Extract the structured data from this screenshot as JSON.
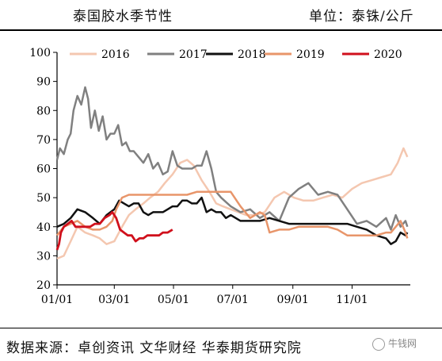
{
  "header": {
    "title": "泰国胶水季节性",
    "unit": "单位：泰铢/公斤"
  },
  "footer": {
    "source": "数据来源：卓创资讯  文华财经  华泰期货研究院",
    "watermark": "牛钱网"
  },
  "chart_data": {
    "type": "line",
    "ylim": [
      20,
      100
    ],
    "yticks": [
      20,
      30,
      40,
      50,
      60,
      70,
      80,
      90,
      100
    ],
    "xlim": [
      1,
      365
    ],
    "xticks": [
      {
        "label": "01/01",
        "day": 1
      },
      {
        "label": "03/01",
        "day": 60
      },
      {
        "label": "05/01",
        "day": 121
      },
      {
        "label": "07/01",
        "day": 182
      },
      {
        "label": "09/01",
        "day": 244
      },
      {
        "label": "11/01",
        "day": 305
      }
    ],
    "legend_position": "top",
    "series": [
      {
        "name": "2016",
        "color": "#f4c7b0",
        "width": 2.5,
        "x": [
          1,
          8,
          15,
          22,
          30,
          38,
          45,
          52,
          60,
          68,
          75,
          82,
          90,
          97,
          105,
          112,
          120,
          128,
          135,
          142,
          150,
          158,
          165,
          172,
          180,
          188,
          196,
          205,
          215,
          225,
          235,
          245,
          255,
          265,
          275,
          285,
          295,
          305,
          315,
          325,
          335,
          345,
          352,
          358,
          362
        ],
        "y": [
          29,
          30,
          35,
          40,
          38,
          37,
          36,
          34,
          35,
          40,
          44,
          46,
          48,
          50,
          52,
          55,
          58,
          62,
          63,
          61,
          56,
          52,
          48,
          47,
          46,
          45,
          44,
          44,
          45,
          50,
          52,
          50,
          49,
          49,
          50,
          51,
          50,
          53,
          55,
          56,
          57,
          58,
          62,
          67,
          64
        ]
      },
      {
        "name": "2017",
        "color": "#808080",
        "width": 2.5,
        "x": [
          1,
          4,
          8,
          12,
          15,
          18,
          22,
          26,
          30,
          33,
          36,
          40,
          44,
          48,
          52,
          56,
          60,
          64,
          68,
          72,
          76,
          80,
          85,
          90,
          95,
          100,
          105,
          110,
          115,
          120,
          125,
          130,
          135,
          140,
          145,
          150,
          155,
          160,
          165,
          170,
          180,
          190,
          200,
          210,
          220,
          230,
          240,
          250,
          260,
          270,
          280,
          290,
          300,
          310,
          320,
          330,
          340,
          345,
          350,
          355,
          360,
          362
        ],
        "y": [
          63,
          67,
          65,
          70,
          72,
          80,
          85,
          82,
          88,
          84,
          74,
          80,
          73,
          78,
          70,
          72,
          72,
          75,
          68,
          69,
          66,
          66,
          64,
          62,
          65,
          60,
          62,
          58,
          59,
          66,
          61,
          60,
          60,
          60,
          61,
          61,
          66,
          60,
          52,
          50,
          47,
          45,
          46,
          43,
          45,
          42,
          50,
          53,
          55,
          51,
          52,
          51,
          46,
          41,
          42,
          40,
          43,
          39,
          44,
          40,
          42,
          40
        ]
      },
      {
        "name": "2018",
        "color": "#111111",
        "width": 2.5,
        "x": [
          1,
          8,
          15,
          22,
          30,
          38,
          45,
          52,
          60,
          65,
          70,
          75,
          80,
          85,
          90,
          95,
          100,
          105,
          110,
          115,
          120,
          125,
          130,
          135,
          140,
          145,
          150,
          155,
          160,
          165,
          170,
          175,
          180,
          190,
          200,
          210,
          220,
          230,
          240,
          250,
          260,
          270,
          280,
          290,
          300,
          310,
          320,
          330,
          340,
          345,
          350,
          355,
          360,
          362
        ],
        "y": [
          40,
          41,
          43,
          46,
          45,
          43,
          41,
          44,
          46,
          49,
          48,
          47,
          48,
          48,
          45,
          44,
          45,
          45,
          45,
          46,
          47,
          47,
          49,
          49,
          48,
          48,
          50,
          45,
          46,
          45,
          45,
          43,
          44,
          42,
          42,
          42,
          43,
          42,
          41,
          41,
          41,
          41,
          41,
          41,
          41,
          40,
          39,
          37,
          36,
          34,
          35,
          38,
          37,
          38
        ]
      },
      {
        "name": "2019",
        "color": "#e8956a",
        "width": 2.5,
        "x": [
          1,
          8,
          15,
          22,
          30,
          38,
          45,
          52,
          58,
          62,
          68,
          75,
          85,
          95,
          105,
          115,
          125,
          135,
          145,
          155,
          165,
          170,
          175,
          180,
          190,
          200,
          210,
          215,
          220,
          230,
          240,
          250,
          260,
          270,
          280,
          290,
          300,
          310,
          320,
          330,
          340,
          345,
          350,
          355,
          360,
          362
        ],
        "y": [
          37,
          40,
          41,
          42,
          40,
          39,
          39,
          40,
          42,
          46,
          50,
          51,
          51,
          51,
          51,
          51,
          51,
          51,
          52,
          52,
          52,
          52,
          52,
          52,
          47,
          43,
          45,
          44,
          38,
          39,
          39,
          40,
          40,
          40,
          40,
          39,
          37,
          37,
          37,
          37,
          38,
          38,
          40,
          42,
          38,
          36
        ]
      },
      {
        "name": "2020",
        "color": "#d0101c",
        "width": 2.8,
        "x": [
          1,
          3,
          5,
          8,
          12,
          16,
          20,
          25,
          30,
          35,
          40,
          45,
          50,
          55,
          58,
          62,
          66,
          70,
          74,
          78,
          82,
          86,
          90,
          94,
          98,
          102,
          106,
          110,
          115,
          120
        ],
        "y": [
          32,
          34,
          38,
          40,
          41,
          42,
          40,
          40,
          40,
          40,
          41,
          41,
          43,
          44,
          45,
          43,
          39,
          38,
          37,
          37,
          35,
          36,
          36,
          37,
          37,
          37,
          37,
          38,
          38,
          39
        ]
      }
    ]
  }
}
